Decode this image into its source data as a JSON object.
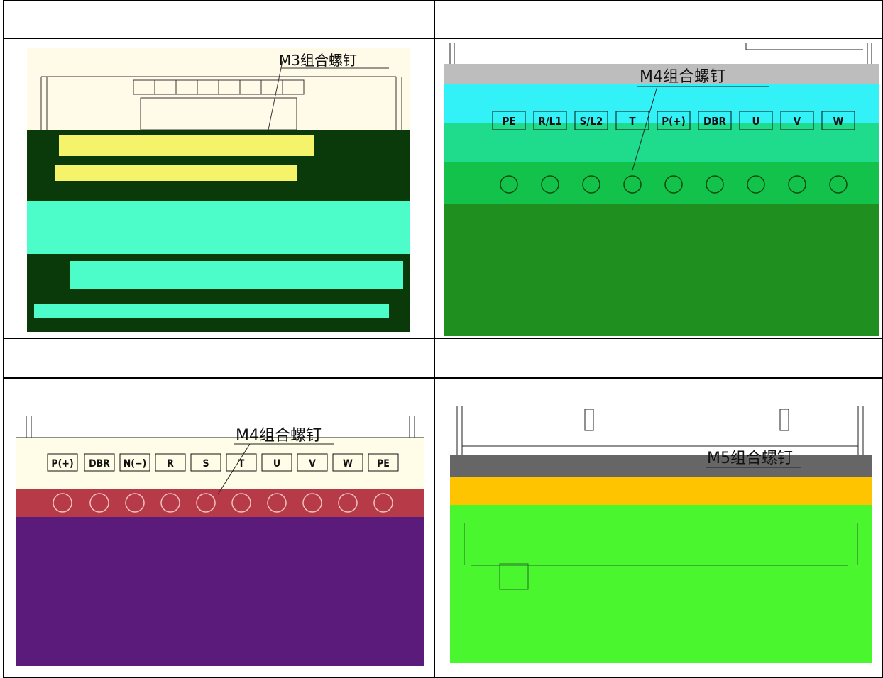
{
  "figures": [
    {
      "id": "fig-m3",
      "callout": "M3组合螺钉",
      "terminals": []
    },
    {
      "id": "fig-m4-a",
      "callout": "M4组合螺钉",
      "terminals": [
        "PE",
        "R/L1",
        "S/L2",
        "T",
        "P(+)",
        "DBR",
        "U",
        "V",
        "W"
      ]
    },
    {
      "id": "fig-m4-b",
      "callout": "M4组合螺钉",
      "terminals": [
        "P(+)",
        "DBR",
        "N(−)",
        "R",
        "S",
        "T",
        "U",
        "V",
        "W",
        "PE"
      ]
    },
    {
      "id": "fig-m5",
      "callout": "M5组合螺钉",
      "terminals": []
    }
  ],
  "colors": {
    "fig_m3_bands": [
      "#fffbe8",
      "#0a3a0a",
      "#f4f36a",
      "#0a3a0a",
      "#4dfdc9",
      "#0a3a0a"
    ],
    "fig_m4a_bands": [
      "#bdbdbd",
      "#33f2f7",
      "#1edc8c",
      "#13c24a",
      "#1db71d",
      "#1f8f1f"
    ],
    "fig_m4b_bands": [
      "#fffde8",
      "#b63a48",
      "#6f1f6f",
      "#5a1b7a"
    ],
    "fig_m5_bands": [
      "#ffffff",
      "#666666",
      "#ffc400",
      "#4af72e"
    ]
  }
}
